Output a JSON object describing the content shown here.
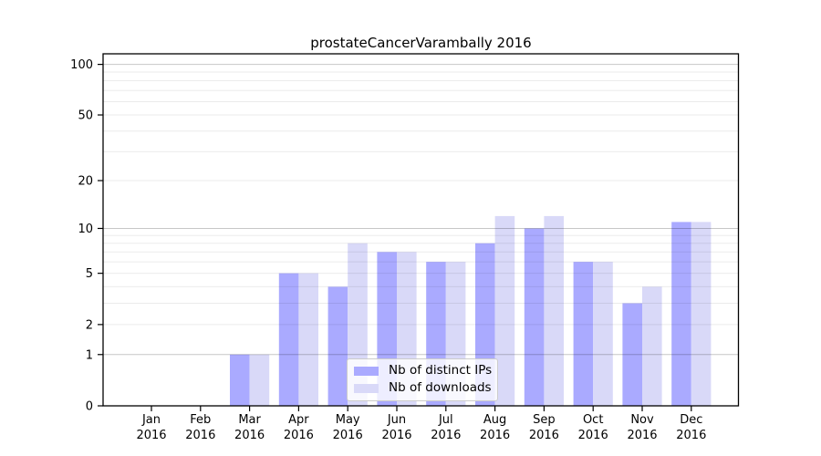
{
  "chart_data": {
    "type": "bar",
    "title": "prostateCancerVarambally 2016",
    "categories": [
      {
        "month": "Jan",
        "year": "2016"
      },
      {
        "month": "Feb",
        "year": "2016"
      },
      {
        "month": "Mar",
        "year": "2016"
      },
      {
        "month": "Apr",
        "year": "2016"
      },
      {
        "month": "May",
        "year": "2016"
      },
      {
        "month": "Jun",
        "year": "2016"
      },
      {
        "month": "Jul",
        "year": "2016"
      },
      {
        "month": "Aug",
        "year": "2016"
      },
      {
        "month": "Sep",
        "year": "2016"
      },
      {
        "month": "Oct",
        "year": "2016"
      },
      {
        "month": "Nov",
        "year": "2016"
      },
      {
        "month": "Dec",
        "year": "2016"
      }
    ],
    "series": [
      {
        "name": "Nb of distinct IPs",
        "color": "#aaaaff",
        "values": [
          0,
          0,
          1,
          5,
          4,
          7,
          6,
          8,
          10,
          6,
          3,
          11
        ]
      },
      {
        "name": "Nb of downloads",
        "color": "#d9d9f8",
        "values": [
          0,
          0,
          1,
          5,
          8,
          7,
          6,
          12,
          12,
          6,
          4,
          11
        ]
      }
    ],
    "y_axis": {
      "scale": "log10(1+value)",
      "tick_labels": [
        "100",
        "50",
        "20",
        "10",
        "5",
        "2",
        "1",
        "0"
      ],
      "tick_values": [
        100,
        50,
        20,
        10,
        5,
        2,
        1,
        0
      ],
      "limits": [
        0,
        115
      ],
      "grid": true
    },
    "xlabel": "",
    "ylabel": "",
    "legend": {
      "position": "lower-center",
      "entries": [
        "Nb of distinct IPs",
        "Nb of downloads"
      ]
    },
    "style": {
      "major_grid_color": "#c6c6c6",
      "minor_grid_color": "#ebebeb",
      "spine_color": "#000000",
      "text_color": "#000000",
      "background": "#ffffff"
    }
  }
}
